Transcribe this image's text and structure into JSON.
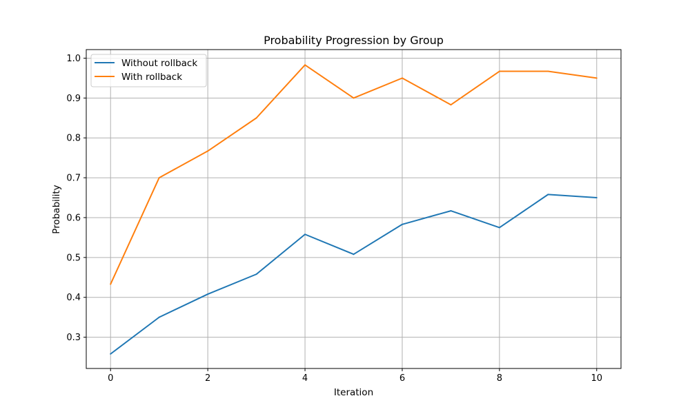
{
  "chart_data": {
    "type": "line",
    "title": "Probability Progression by Group",
    "xlabel": "Iteration",
    "ylabel": "Probability",
    "x": [
      0,
      1,
      2,
      3,
      4,
      5,
      6,
      7,
      8,
      9,
      10
    ],
    "xlim": [
      -0.5,
      10.5
    ],
    "ylim": [
      0.2215,
      1.0215
    ],
    "xticks": [
      0,
      2,
      4,
      6,
      8,
      10
    ],
    "yticks": [
      0.3,
      0.4,
      0.5,
      0.6,
      0.7,
      0.8,
      0.9,
      1.0
    ],
    "xtick_labels": [
      "0",
      "2",
      "4",
      "6",
      "8",
      "10"
    ],
    "ytick_labels": [
      "0.3",
      "0.4",
      "0.5",
      "0.6",
      "0.7",
      "0.8",
      "0.9",
      "1.0"
    ],
    "grid": true,
    "legend_position": "top-left",
    "series": [
      {
        "name": "Without rollback",
        "color": "#1f77b4",
        "values": [
          0.258,
          0.35,
          0.408,
          0.458,
          0.558,
          0.508,
          0.583,
          0.617,
          0.575,
          0.658,
          0.65
        ]
      },
      {
        "name": "With rollback",
        "color": "#ff7f0e",
        "values": [
          0.433,
          0.7,
          0.767,
          0.85,
          0.983,
          0.9,
          0.95,
          0.883,
          0.967,
          0.967,
          0.95
        ]
      }
    ]
  }
}
